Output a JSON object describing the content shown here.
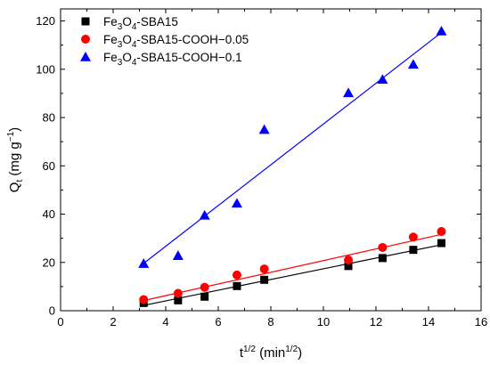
{
  "chart_data": {
    "type": "scatter",
    "xlabel": {
      "base": "t",
      "sup": "1/2",
      "rest": " (min",
      "sup2": "1/2",
      "end": ")"
    },
    "ylabel": {
      "base": "Q",
      "sub": "t",
      "rest": " (mg g",
      "sup": "−1",
      "end": ")"
    },
    "xlim": [
      0,
      16
    ],
    "ylim": [
      0,
      125
    ],
    "xticks": [
      0,
      2,
      4,
      6,
      8,
      10,
      12,
      14,
      16
    ],
    "yticks": [
      0,
      20,
      40,
      60,
      80,
      100,
      120
    ],
    "legend_position": "top-left",
    "series": [
      {
        "name": "Fe3O4-SBA15",
        "legend_parts": [
          {
            "t": "Fe",
            "s": ""
          },
          {
            "t": "3",
            "s": "sub"
          },
          {
            "t": "O",
            "s": ""
          },
          {
            "t": "4",
            "s": "sub"
          },
          {
            "t": "-SBA15",
            "s": ""
          }
        ],
        "marker": "square",
        "color": "#000000",
        "line_color": "#000000",
        "x": [
          3.16,
          4.47,
          5.48,
          6.71,
          7.75,
          10.95,
          12.25,
          13.42,
          14.49
        ],
        "y": [
          3.2,
          4.3,
          5.8,
          10.2,
          12.8,
          18.5,
          21.8,
          25.2,
          28.0
        ],
        "fit": {
          "x": [
            3.16,
            14.49
          ],
          "y": [
            2.2,
            27.3
          ]
        }
      },
      {
        "name": "Fe3O4-SBA15-COOH−0.05",
        "legend_parts": [
          {
            "t": "Fe",
            "s": ""
          },
          {
            "t": "3",
            "s": "sub"
          },
          {
            "t": "O",
            "s": ""
          },
          {
            "t": "4",
            "s": "sub"
          },
          {
            "t": "-SBA15-COOH−0.05",
            "s": ""
          }
        ],
        "marker": "circle",
        "color": "#ff0000",
        "line_color": "#ff0000",
        "x": [
          3.16,
          4.47,
          5.48,
          6.71,
          7.75,
          10.95,
          12.25,
          13.42,
          14.49
        ],
        "y": [
          4.6,
          7.2,
          9.7,
          14.8,
          17.3,
          21.0,
          26.2,
          30.5,
          32.8
        ],
        "fit": {
          "x": [
            3.16,
            14.49
          ],
          "y": [
            4.2,
            31.6
          ]
        }
      },
      {
        "name": "Fe3O4-SBA15-COOH−0.1",
        "legend_parts": [
          {
            "t": "Fe",
            "s": ""
          },
          {
            "t": "3",
            "s": "sub"
          },
          {
            "t": "O",
            "s": ""
          },
          {
            "t": "4",
            "s": "sub"
          },
          {
            "t": "-SBA15-COOH−0.1",
            "s": ""
          }
        ],
        "marker": "triangle",
        "color": "#0000ff",
        "line_color": "#0000ff",
        "x": [
          3.16,
          4.47,
          5.48,
          6.71,
          7.75,
          10.95,
          12.25,
          13.42,
          14.49
        ],
        "y": [
          19.5,
          22.8,
          39.5,
          44.5,
          75.0,
          90.2,
          95.8,
          102.0,
          115.8
        ],
        "fit": {
          "x": [
            3.16,
            14.49
          ],
          "y": [
            19.6,
            115.2
          ]
        }
      }
    ]
  }
}
